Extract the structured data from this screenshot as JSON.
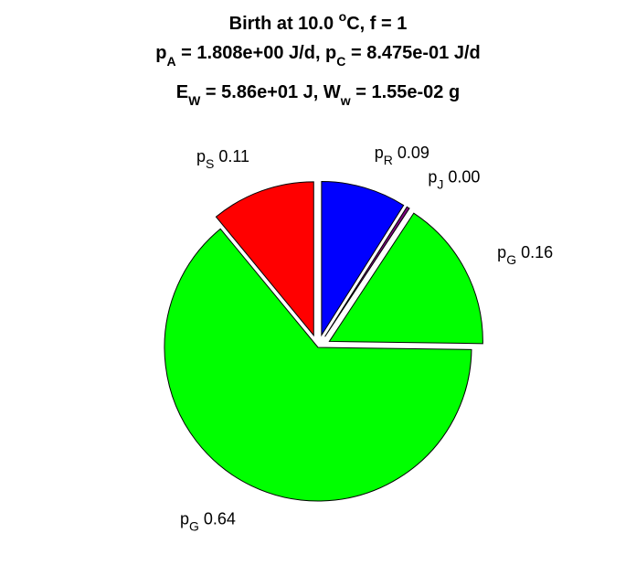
{
  "chart_data": {
    "type": "pie",
    "title": [
      [
        {
          "t": "Birth at 10.0 "
        },
        {
          "t": "o",
          "sup": true
        },
        {
          "t": "C, f = 1"
        }
      ],
      [
        {
          "t": "p"
        },
        {
          "t": "A",
          "sub": true
        },
        {
          "t": " = 1.808e+00 J/d, p"
        },
        {
          "t": "C",
          "sub": true
        },
        {
          "t": " = 8.475e-01 J/d"
        }
      ],
      [
        {
          "t": "E"
        },
        {
          "t": "W",
          "sub": true
        },
        {
          "t": " = 5.86e+01 J, W"
        },
        {
          "t": "w",
          "sub": true
        },
        {
          "t": " = 1.55e-02 g"
        }
      ]
    ],
    "slices": [
      {
        "sym": "p",
        "sub": "R",
        "value": 0.09,
        "label": "0.09",
        "color": "#0000ff",
        "explode": true
      },
      {
        "sym": "p",
        "sub": "J",
        "value": 0.003,
        "label": "0.00",
        "color": "#800080",
        "explode": true
      },
      {
        "sym": "p",
        "sub": "G",
        "value": 0.16,
        "label": "0.16",
        "color": "#00ff00",
        "explode": true
      },
      {
        "sym": "p",
        "sub": "G",
        "value": 0.64,
        "label": "0.64",
        "color": "#00ff00",
        "explode": false
      },
      {
        "sym": "p",
        "sub": "S",
        "value": 0.11,
        "label": "0.11",
        "color": "#ff0000",
        "explode": true
      }
    ]
  }
}
